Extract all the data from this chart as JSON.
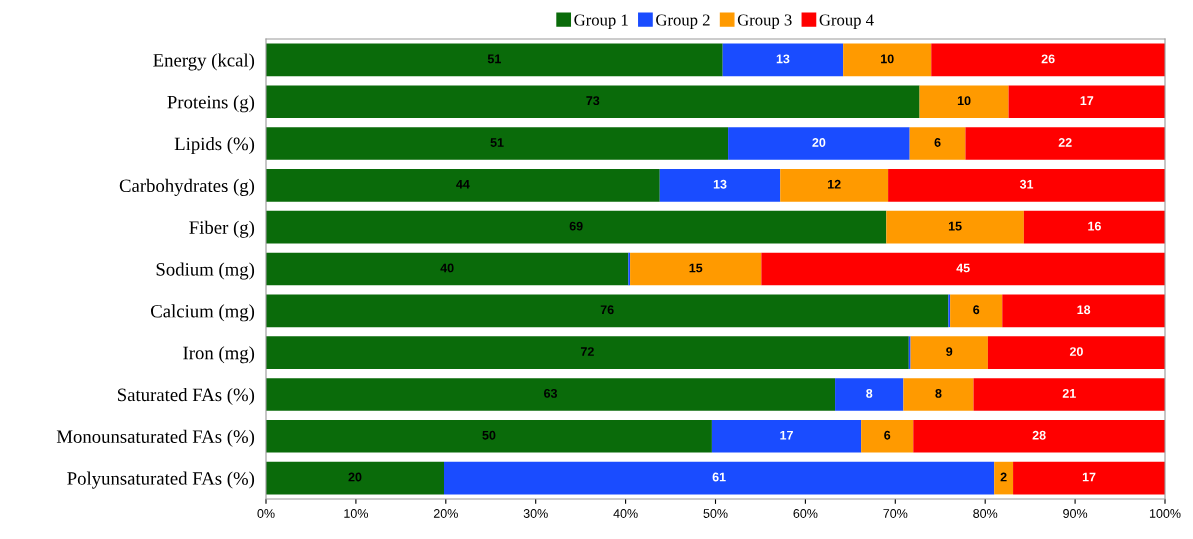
{
  "chart_data": {
    "type": "bar",
    "orientation": "horizontal",
    "stacked": true,
    "categories": [
      "Energy (kcal)",
      "Proteins (g)",
      "Lipids (%)",
      "Carbohydrates (g)",
      "Fiber (g)",
      "Sodium (mg)",
      "Calcium (mg)",
      "Iron (mg)",
      "Saturated FAs (%)",
      "Monounsaturated FAs (%)",
      "Polyunsaturated FAs (%)"
    ],
    "series": [
      {
        "name": "Group 1",
        "color": "#0a6b0a",
        "values": [
          50.8,
          72.7,
          51.4,
          43.8,
          69.0,
          40.3,
          75.9,
          71.5,
          63.3,
          49.6,
          19.8
        ],
        "value_labels": [
          "51",
          "73",
          "51",
          "44",
          "69",
          "40",
          "76",
          "72",
          "63",
          "50",
          "20"
        ]
      },
      {
        "name": "Group 2",
        "color": "#1a4cff",
        "values": [
          13.4,
          0,
          20.2,
          13.4,
          0,
          0.2,
          0.2,
          0.2,
          7.6,
          16.6,
          61.2
        ],
        "value_labels": [
          "13",
          null,
          "20",
          "13",
          null,
          null,
          null,
          null,
          "8",
          "17",
          "61"
        ]
      },
      {
        "name": "Group 3",
        "color": "#ff9a00",
        "values": [
          9.8,
          9.9,
          6.2,
          12.0,
          15.3,
          14.6,
          5.8,
          8.6,
          7.8,
          5.8,
          2.1
        ],
        "value_labels": [
          "10",
          "10",
          "6",
          "12",
          "15",
          "15",
          "6",
          "9",
          "8",
          "6",
          "2"
        ]
      },
      {
        "name": "Group 4",
        "color": "#ff0000",
        "values": [
          26.0,
          17.4,
          22.2,
          30.8,
          15.7,
          44.9,
          18.1,
          19.7,
          21.3,
          28.0,
          16.9
        ],
        "value_labels": [
          "26",
          "17",
          "22",
          "31",
          "16",
          "45",
          "18",
          "20",
          "21",
          "28",
          "17"
        ]
      }
    ],
    "xlim": [
      0,
      100
    ],
    "xticks": [
      {
        "value": 0,
        "label": "0%"
      },
      {
        "value": 10,
        "label": "10%"
      },
      {
        "value": 20,
        "label": "20%"
      },
      {
        "value": 30,
        "label": "30%"
      },
      {
        "value": 40,
        "label": "40%"
      },
      {
        "value": 50,
        "label": "50%"
      },
      {
        "value": 60,
        "label": "60%"
      },
      {
        "value": 70,
        "label": "70%"
      },
      {
        "value": 80,
        "label": "80%"
      },
      {
        "value": 90,
        "label": "90%"
      },
      {
        "value": 100,
        "label": "100%"
      }
    ],
    "legend": "top",
    "grid": false
  }
}
